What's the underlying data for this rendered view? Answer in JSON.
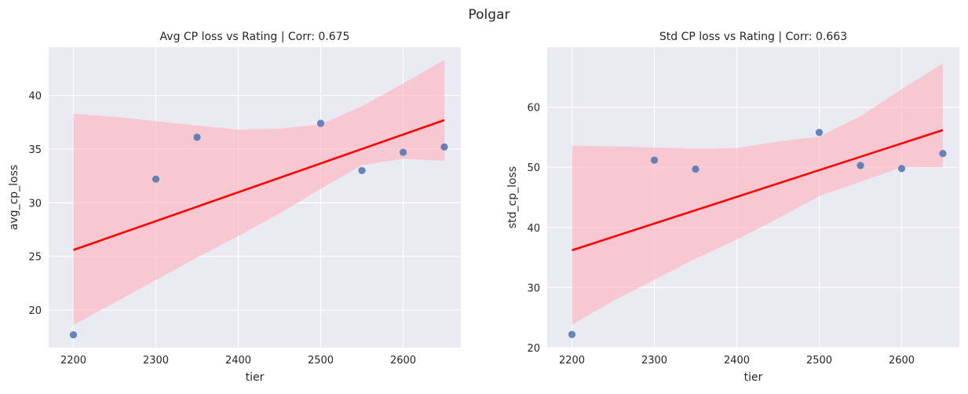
{
  "figure": {
    "suptitle": "Polgar"
  },
  "chart_data": [
    {
      "type": "scatter",
      "title": "Avg CP loss vs Rating | Corr: 0.675",
      "xlabel": "tier",
      "ylabel": "avg_cp_loss",
      "xlim": [
        2170,
        2670
      ],
      "ylim": [
        16.5,
        44.5
      ],
      "xticks": [
        2200,
        2300,
        2400,
        2500,
        2600
      ],
      "yticks": [
        20,
        25,
        30,
        35,
        40
      ],
      "grid": true,
      "points": [
        {
          "x": 2200,
          "y": 17.7
        },
        {
          "x": 2300,
          "y": 32.2
        },
        {
          "x": 2350,
          "y": 36.1
        },
        {
          "x": 2500,
          "y": 37.4
        },
        {
          "x": 2550,
          "y": 33.0
        },
        {
          "x": 2600,
          "y": 34.7
        },
        {
          "x": 2650,
          "y": 35.2
        }
      ],
      "regression": {
        "x": [
          2200,
          2650
        ],
        "y": [
          25.6,
          37.7
        ]
      },
      "ci_band": {
        "x": [
          2200,
          2250,
          2300,
          2350,
          2400,
          2450,
          2500,
          2550,
          2600,
          2650
        ],
        "upper": [
          38.3,
          38.0,
          37.6,
          37.2,
          36.8,
          36.9,
          37.3,
          39.0,
          41.1,
          43.3
        ],
        "lower": [
          18.6,
          20.7,
          22.8,
          24.9,
          26.9,
          29.0,
          31.3,
          33.5,
          34.1,
          33.9
        ]
      },
      "colors": {
        "points": "#4c72b0",
        "line": "#ff0000",
        "band": "#ffb0bc"
      }
    },
    {
      "type": "scatter",
      "title": "Std CP loss vs Rating | Corr: 0.663",
      "xlabel": "tier",
      "ylabel": "std_cp_loss",
      "xlim": [
        2170,
        2670
      ],
      "ylim": [
        20,
        70
      ],
      "xticks": [
        2200,
        2300,
        2400,
        2500,
        2600
      ],
      "yticks": [
        20,
        30,
        40,
        50,
        60
      ],
      "grid": true,
      "points": [
        {
          "x": 2200,
          "y": 22.2
        },
        {
          "x": 2300,
          "y": 51.2
        },
        {
          "x": 2350,
          "y": 49.7
        },
        {
          "x": 2500,
          "y": 55.8
        },
        {
          "x": 2550,
          "y": 50.3
        },
        {
          "x": 2600,
          "y": 49.8
        },
        {
          "x": 2650,
          "y": 52.3
        }
      ],
      "regression": {
        "x": [
          2200,
          2650
        ],
        "y": [
          36.2,
          56.2
        ]
      },
      "ci_band": {
        "x": [
          2200,
          2250,
          2300,
          2350,
          2400,
          2450,
          2500,
          2550,
          2600,
          2650
        ],
        "upper": [
          53.6,
          53.5,
          53.3,
          53.1,
          53.2,
          54.3,
          55.1,
          58.5,
          63.0,
          67.3
        ],
        "lower": [
          23.8,
          27.8,
          31.3,
          34.8,
          38.0,
          41.5,
          45.2,
          47.6,
          50.0,
          50.0
        ]
      },
      "colors": {
        "points": "#4c72b0",
        "line": "#ff0000",
        "band": "#ffb0bc"
      }
    }
  ]
}
